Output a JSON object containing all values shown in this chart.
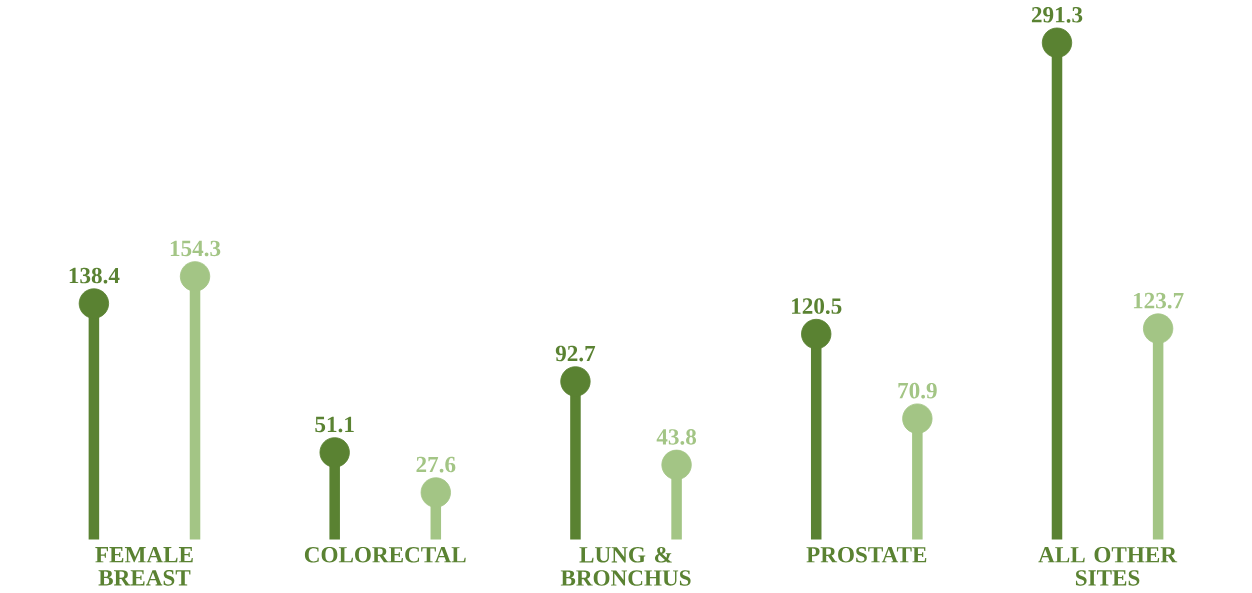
{
  "chart_data": {
    "type": "lollipop",
    "categories": [
      "FEMALE BREAST",
      "COLORECTAL",
      "LUNG & BRONCHUS",
      "PROSTATE",
      "ALL OTHER SITES"
    ],
    "series": [
      {
        "color": "#5a8232",
        "values": [
          138.4,
          51.1,
          92.7,
          120.5,
          291.3
        ]
      },
      {
        "color": "#a3c585",
        "values": [
          154.3,
          27.6,
          43.8,
          70.9,
          123.7
        ]
      }
    ],
    "data_labels": true,
    "marker": "circle"
  }
}
